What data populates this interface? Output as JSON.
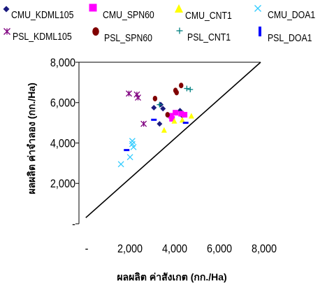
{
  "chart_data": {
    "type": "scatter",
    "xlabel": "ผลผลิต ค่าสังเกต (กก./Ha)",
    "ylabel": "ผลผลิต ค่าจำลอง (กก./Ha)",
    "xlim": [
      0,
      8000
    ],
    "ylim": [
      0,
      8000
    ],
    "x_ticks": [
      "-",
      "2,000",
      "4,000",
      "6,000",
      "8,000"
    ],
    "y_ticks": [
      "-",
      "2,000",
      "4,000",
      "6,000",
      "8,000"
    ],
    "grid": false,
    "legend_position": "top",
    "reference_line": {
      "name": "1:1 line",
      "x": [
        0,
        8000
      ],
      "y": [
        0,
        8000
      ],
      "color": "#000000"
    },
    "series": [
      {
        "name": "CMU_KDML105",
        "marker": "diamond",
        "color": "#1a1a7e",
        "points": [
          [
            3300,
            5750
          ],
          [
            3550,
            4950
          ],
          [
            3600,
            5900
          ],
          [
            4550,
            5350
          ],
          [
            4450,
            5600
          ],
          [
            3700,
            5700
          ]
        ]
      },
      {
        "name": "CMU_SPN60",
        "marker": "square",
        "color": "#ff00ff",
        "points": [
          [
            4050,
            5350
          ],
          [
            4250,
            5500
          ],
          [
            4500,
            5450
          ],
          [
            4100,
            5200
          ],
          [
            4650,
            5400
          ]
        ]
      },
      {
        "name": "CMU_CNT1",
        "marker": "triangle",
        "color": "#ffff00",
        "points": [
          [
            3750,
            4650
          ],
          [
            4950,
            5350
          ],
          [
            4200,
            5100
          ],
          [
            4550,
            5150
          ]
        ]
      },
      {
        "name": "CMU_DOA1",
        "marker": "x",
        "color": "#33ccff",
        "points": [
          [
            1850,
            2950
          ],
          [
            2250,
            3300
          ],
          [
            2350,
            3950
          ],
          [
            2350,
            4100
          ],
          [
            2400,
            3800
          ]
        ]
      },
      {
        "name": "PSL_KDML105",
        "marker": "asterisk",
        "color": "#800080",
        "points": [
          [
            2200,
            6450
          ],
          [
            2550,
            6400
          ],
          [
            2600,
            6250
          ],
          [
            2850,
            4950
          ]
        ]
      },
      {
        "name": "PSL_SPN60",
        "marker": "circle",
        "color": "#800000",
        "points": [
          [
            3350,
            6200
          ],
          [
            4300,
            6500
          ],
          [
            4500,
            6850
          ],
          [
            4250,
            6600
          ],
          [
            3900,
            5400
          ]
        ]
      },
      {
        "name": "PSL_CNT1",
        "marker": "plus",
        "color": "#008080",
        "points": [
          [
            3550,
            5900
          ],
          [
            4750,
            6700
          ],
          [
            4900,
            6650
          ]
        ]
      },
      {
        "name": "PSL_DOA1",
        "marker": "bar",
        "color": "#0000ff",
        "points": [
          [
            2100,
            3650
          ],
          [
            3300,
            5150
          ],
          [
            4700,
            5000
          ]
        ]
      }
    ]
  }
}
